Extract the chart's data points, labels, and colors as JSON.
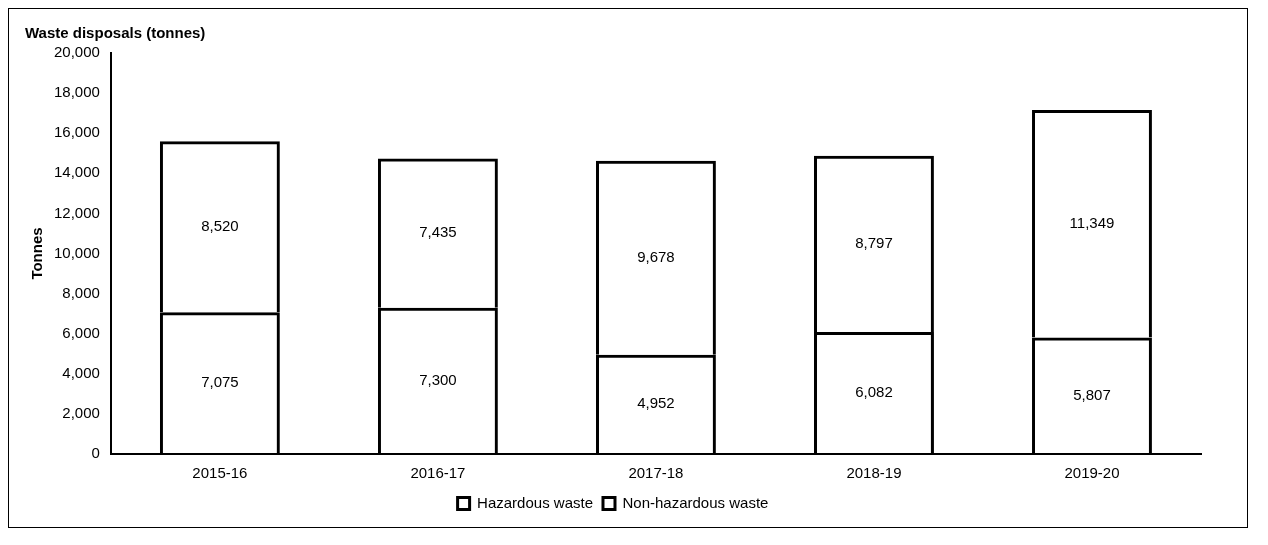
{
  "chart_data": {
    "type": "bar",
    "title": "Waste disposals (tonnes)",
    "ylabel": "Tonnes",
    "categories": [
      "2015-16",
      "2016-17",
      "2017-18",
      "2018-19",
      "2019-20"
    ],
    "stacked": true,
    "series": [
      {
        "name": "Hazardous waste",
        "color": "#000000",
        "values": [
          7075,
          7300,
          4952,
          6082,
          5807
        ],
        "value_labels": [
          "7,075",
          "7,300",
          "4,952",
          "6,082",
          "5,807"
        ]
      },
      {
        "name": "Non-hazardous waste",
        "color": "#000000",
        "values": [
          8520,
          7435,
          9678,
          8797,
          11349
        ],
        "value_labels": [
          "8,520",
          "7,435",
          "9,678",
          "8,797",
          "11,349"
        ]
      }
    ],
    "ylim": [
      0,
      20000
    ],
    "yticks": [
      {
        "value": 0,
        "label": "0"
      },
      {
        "value": 2000,
        "label": "2,000"
      },
      {
        "value": 4000,
        "label": "4,000"
      },
      {
        "value": 6000,
        "label": "6,000"
      },
      {
        "value": 8000,
        "label": "8,000"
      },
      {
        "value": 10000,
        "label": "10,000"
      },
      {
        "value": 12000,
        "label": "12,000"
      },
      {
        "value": 14000,
        "label": "14,000"
      },
      {
        "value": 16000,
        "label": "16,000"
      },
      {
        "value": 18000,
        "label": "18,000"
      },
      {
        "value": 20000,
        "label": "20,000"
      }
    ],
    "grid": false,
    "legend": "bottom"
  }
}
